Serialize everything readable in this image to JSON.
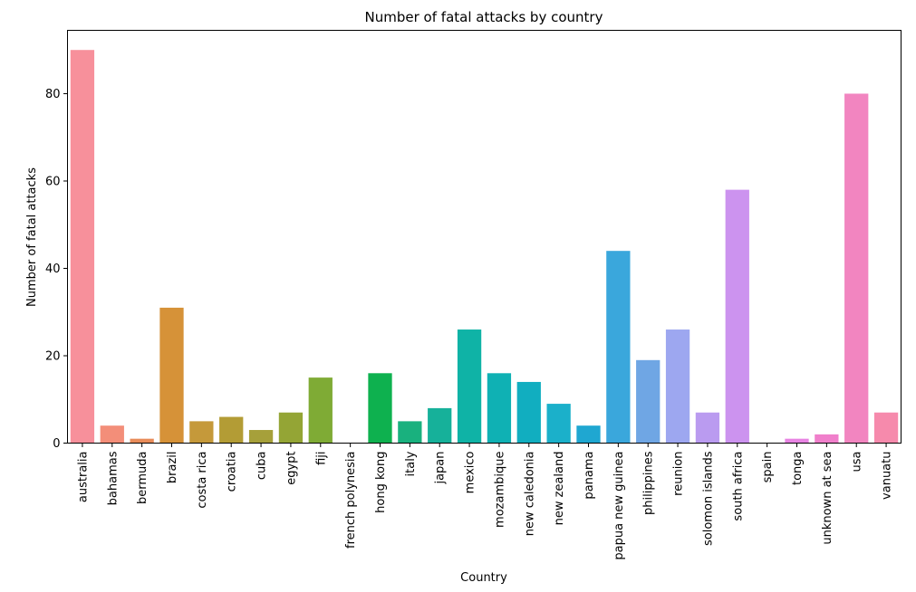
{
  "chart_data": {
    "type": "bar",
    "title": "Number of fatal attacks by country",
    "xlabel": "Country",
    "ylabel": "Number of fatal attacks",
    "ylim": [
      0,
      94.5
    ],
    "yticks": [
      0,
      20,
      40,
      60,
      80
    ],
    "grid": false,
    "categories": [
      "australia",
      "bahamas",
      "bermuda",
      "brazil",
      "costa rica",
      "croatia",
      "cuba",
      "egypt",
      "fiji",
      "french polynesia",
      "hong kong",
      "italy",
      "japan",
      "mexico",
      "mozambique",
      "new caledonia",
      "new zealand",
      "panama",
      "papua new guinea",
      "philippines",
      "reunion",
      "solomon islands",
      "south africa",
      "spain",
      "tonga",
      "unknown at sea",
      "usa",
      "vanuatu"
    ],
    "values": [
      90,
      4,
      1,
      31,
      5,
      6,
      3,
      7,
      15,
      0,
      16,
      5,
      8,
      26,
      16,
      14,
      9,
      4,
      44,
      19,
      26,
      7,
      58,
      0,
      1,
      2,
      80,
      7
    ],
    "colors": [
      "#f7909b",
      "#f38e79",
      "#e88c5a",
      "#d69238",
      "#c5993a",
      "#b39c35",
      "#a6a03a",
      "#94a535",
      "#7fab35",
      "#4db23c",
      "#0eb14f",
      "#19b17e",
      "#16b19a",
      "#0fb3a6",
      "#0fb1b4",
      "#11aec0",
      "#1bb0ca",
      "#1fa7d1",
      "#3aa7dc",
      "#6fa6e4",
      "#9da7f0",
      "#ba9bf0",
      "#cc93ef",
      "#dc88e8",
      "#e884e3",
      "#f07fcb",
      "#f285c0",
      "#f68aac"
    ]
  }
}
